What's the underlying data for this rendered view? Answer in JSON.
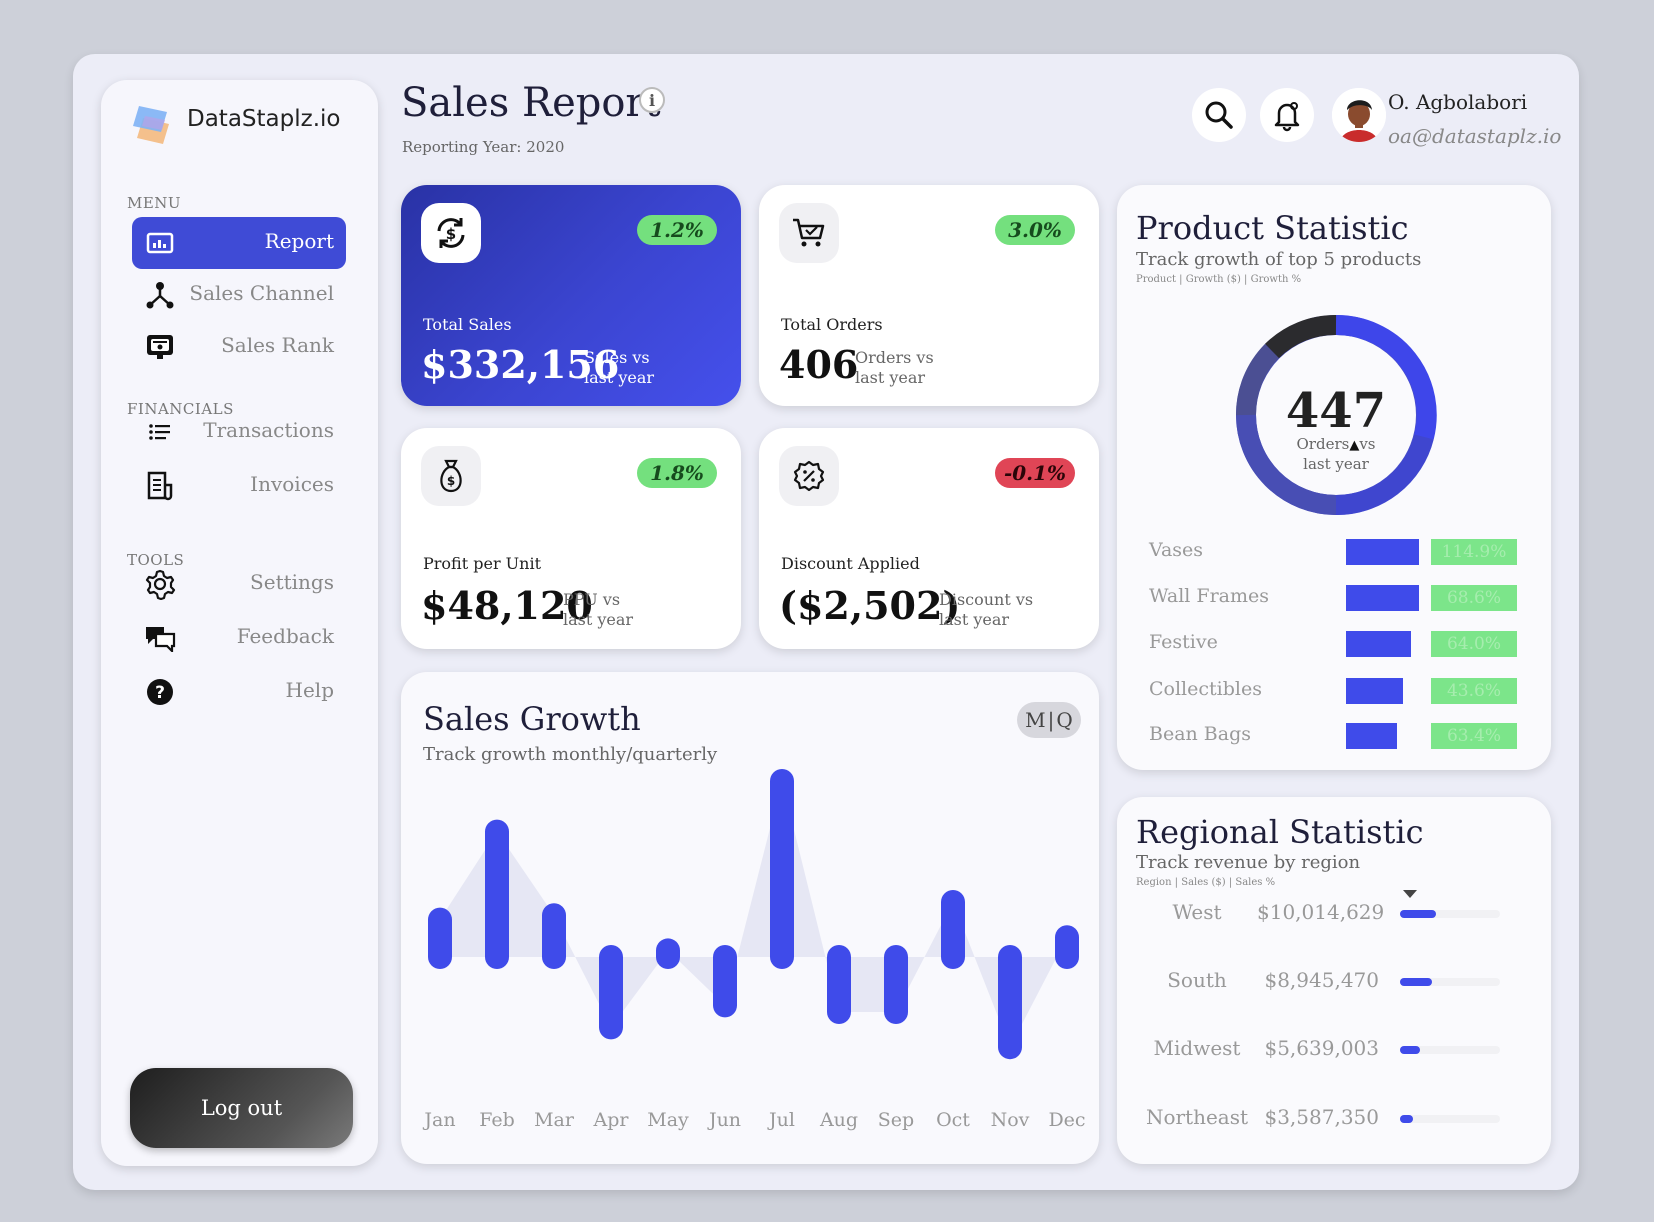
{
  "brand": {
    "name": "DataStaplz.io"
  },
  "sidebar": {
    "menu_label": "MENU",
    "financials_label": "FINANCIALS",
    "tools_label": "TOOLS",
    "items": [
      {
        "label": "Report",
        "icon": "report-icon"
      },
      {
        "label": "Sales Channel",
        "icon": "network-icon"
      },
      {
        "label": "Sales Rank",
        "icon": "rank-icon"
      },
      {
        "label": "Transactions",
        "icon": "list-icon"
      },
      {
        "label": "Invoices",
        "icon": "invoice-icon"
      },
      {
        "label": "Settings",
        "icon": "gear-icon"
      },
      {
        "label": "Feedback",
        "icon": "chat-icon"
      },
      {
        "label": "Help",
        "icon": "help-icon"
      }
    ],
    "logout_label": "Log out"
  },
  "header": {
    "title": "Sales Report",
    "subtitle": "Reporting Year: 2020",
    "user_name": "O. Agbolabori",
    "user_email": "oa@datastaplz.io"
  },
  "kpis": {
    "total_sales": {
      "label": "Total Sales",
      "value": "$332,156",
      "compare_line1": "Sales vs",
      "compare_line2": "last year",
      "badge": "1.2%"
    },
    "total_orders": {
      "label": "Total Orders",
      "value": "406",
      "compare_line1": "Orders vs",
      "compare_line2": "last year",
      "badge": "3.0%"
    },
    "profit_per_unit": {
      "label": "Profit per Unit",
      "value": "$48,120",
      "compare_line1": "PPU vs",
      "compare_line2": "last year",
      "badge": "1.8%"
    },
    "discount_applied": {
      "label": "Discount Applied",
      "value": "($2,502)",
      "compare_line1": "Discount vs",
      "compare_line2": "last year",
      "badge": "-0.1%"
    }
  },
  "sales_growth": {
    "title": "Sales Growth",
    "subtitle": "Track growth monthly/quarterly",
    "toggle_m": "M",
    "toggle_q": "Q"
  },
  "chart_data": {
    "type": "bar",
    "categories": [
      "Jan",
      "Feb",
      "Mar",
      "Apr",
      "May",
      "Jun",
      "Jul",
      "Aug",
      "Sep",
      "Oct",
      "Nov",
      "Dec"
    ],
    "values": [
      1.7,
      5.7,
      1.9,
      -3.2,
      0.3,
      -2.2,
      8.0,
      -2.5,
      -2.5,
      2.5,
      -4.1,
      0.9
    ],
    "title": "Sales Growth",
    "ylabel": "",
    "xlabel": "",
    "color": "#3f4bea",
    "grid": false
  },
  "product_stat": {
    "title": "Product Statistic",
    "subtitle": "Track growth of top 5 products",
    "caption": "Product | Growth ($) | Growth %",
    "donut_value": "447",
    "donut_line1": "Orders",
    "donut_delta": "vs",
    "donut_line2": "last year",
    "products": [
      {
        "name": "Vases",
        "fraction": 0.94,
        "growth": "114.9%"
      },
      {
        "name": "Wall Frames",
        "fraction": 0.93,
        "growth": "68.6%"
      },
      {
        "name": "Festive",
        "fraction": 0.83,
        "growth": "64.0%"
      },
      {
        "name": "Collectibles",
        "fraction": 0.73,
        "growth": "43.6%"
      },
      {
        "name": "Bean Bags",
        "fraction": 0.65,
        "growth": "63.4%"
      }
    ]
  },
  "regional_stat": {
    "title": "Regional Statistic",
    "subtitle": "Track revenue by region",
    "caption": "Region | Sales ($) | Sales %",
    "regions": [
      {
        "name": "West",
        "value": "$10,014,629",
        "fraction": 0.36
      },
      {
        "name": "South",
        "value": "$8,945,470",
        "fraction": 0.32
      },
      {
        "name": "Midwest",
        "value": "$5,639,003",
        "fraction": 0.2
      },
      {
        "name": "Northeast",
        "value": "$3,587,350",
        "fraction": 0.13
      }
    ]
  },
  "colors": {
    "accent": "#3f4bea",
    "positive": "#74e07e",
    "negative": "#e04556",
    "background": "#ecedf7"
  }
}
